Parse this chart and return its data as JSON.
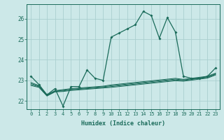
{
  "background_color": "#cce8e8",
  "grid_color": "#aacfcf",
  "line_color": "#1a6b5a",
  "xlabel": "Humidex (Indice chaleur)",
  "ylabel_ticks": [
    22,
    23,
    24,
    25,
    26
  ],
  "xtick_labels": [
    "0",
    "1",
    "2",
    "3",
    "4",
    "5",
    "6",
    "7",
    "8",
    "9",
    "10",
    "11",
    "12",
    "13",
    "14",
    "15",
    "16",
    "17",
    "18",
    "19",
    "20",
    "21",
    "22",
    "23"
  ],
  "xlim": [
    -0.5,
    23.5
  ],
  "ylim": [
    21.6,
    26.7
  ],
  "series_main": [
    23.2,
    22.8,
    22.3,
    22.6,
    21.75,
    22.7,
    22.7,
    23.5,
    23.1,
    23.0,
    25.1,
    25.3,
    25.5,
    25.7,
    26.35,
    26.15,
    25.05,
    26.05,
    25.35,
    23.2,
    23.1,
    23.1,
    23.2,
    23.6
  ],
  "series_flat": [
    [
      22.9,
      22.75,
      22.3,
      22.5,
      22.55,
      22.6,
      22.63,
      22.66,
      22.69,
      22.72,
      22.78,
      22.82,
      22.86,
      22.9,
      22.94,
      22.98,
      23.02,
      23.06,
      23.1,
      23.05,
      23.1,
      23.15,
      23.2,
      23.35
    ],
    [
      22.85,
      22.72,
      22.28,
      22.48,
      22.52,
      22.57,
      22.6,
      22.63,
      22.66,
      22.69,
      22.74,
      22.78,
      22.82,
      22.86,
      22.9,
      22.94,
      22.98,
      23.02,
      23.06,
      23.02,
      23.07,
      23.12,
      23.17,
      23.32
    ],
    [
      22.8,
      22.69,
      22.26,
      22.46,
      22.49,
      22.54,
      22.57,
      22.6,
      22.63,
      22.66,
      22.7,
      22.74,
      22.78,
      22.82,
      22.86,
      22.9,
      22.94,
      22.98,
      23.02,
      22.99,
      23.04,
      23.09,
      23.14,
      23.29
    ],
    [
      22.75,
      22.66,
      22.24,
      22.44,
      22.46,
      22.51,
      22.54,
      22.57,
      22.6,
      22.63,
      22.66,
      22.7,
      22.74,
      22.78,
      22.82,
      22.86,
      22.9,
      22.94,
      22.98,
      22.96,
      23.01,
      23.06,
      23.11,
      23.26
    ]
  ]
}
